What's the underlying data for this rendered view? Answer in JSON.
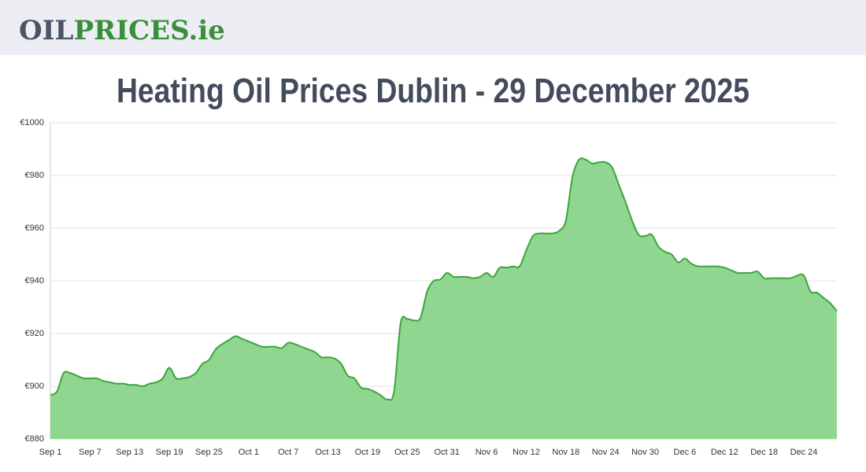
{
  "header": {
    "logo": [
      "OIL",
      "PRICES.ie"
    ]
  },
  "chart_data": {
    "type": "area",
    "title": "Heating Oil Prices Dublin - 29 December 2025",
    "categories": [
      "Sep 1",
      null,
      null,
      null,
      null,
      null,
      "Sep 7",
      null,
      null,
      null,
      null,
      null,
      "Sep 13",
      null,
      null,
      null,
      null,
      null,
      "Sep 19",
      null,
      null,
      null,
      null,
      null,
      "Sep 25",
      null,
      null,
      null,
      null,
      null,
      "Oct 1",
      null,
      null,
      null,
      null,
      null,
      "Oct 7",
      null,
      null,
      null,
      null,
      null,
      "Oct 13",
      null,
      null,
      null,
      null,
      null,
      "Oct 19",
      null,
      null,
      null,
      null,
      null,
      "Oct 25",
      null,
      null,
      null,
      null,
      null,
      "Oct 31",
      null,
      null,
      null,
      null,
      null,
      "Nov 6",
      null,
      null,
      null,
      null,
      null,
      "Nov 12",
      null,
      null,
      null,
      null,
      null,
      "Nov 18",
      null,
      null,
      null,
      null,
      null,
      "Nov 24",
      null,
      null,
      null,
      null,
      null,
      "Nov 30",
      null,
      null,
      null,
      null,
      null,
      "Dec 6",
      null,
      null,
      null,
      null,
      null,
      "Dec 12",
      null,
      null,
      null,
      null,
      null,
      "Dec 18",
      null,
      null,
      null,
      null,
      null,
      "Dec 24",
      null,
      null,
      null,
      null,
      null
    ],
    "values": [
      896.7,
      898,
      905,
      905,
      904,
      903,
      903,
      903,
      902,
      901.5,
      901,
      901,
      900.5,
      900.5,
      900,
      901,
      901.5,
      903,
      907,
      903,
      903,
      903.5,
      905,
      908.5,
      910,
      914,
      916,
      917.5,
      919,
      918,
      917,
      916,
      915,
      915,
      915,
      914.5,
      916.5,
      916,
      915,
      914,
      913,
      911,
      911,
      910.5,
      908.5,
      904,
      903,
      899.5,
      899,
      898,
      896.5,
      895,
      898,
      924,
      925.5,
      925,
      926,
      936,
      940,
      940.5,
      943,
      941.5,
      941.5,
      941.5,
      941,
      941.5,
      943,
      941.5,
      945,
      945,
      945.5,
      945.5,
      951.5,
      957,
      958,
      958,
      958,
      959,
      963,
      979.5,
      986,
      986,
      984.5,
      985,
      985,
      983,
      976.5,
      970,
      963,
      957.5,
      957,
      957.5,
      953,
      951,
      950,
      947,
      948.5,
      946.5,
      945.5,
      945.5,
      945.5,
      945.5,
      945,
      944,
      943,
      943,
      943,
      943.5,
      941,
      941,
      941,
      941,
      941,
      942,
      942,
      936,
      935.5,
      933.5,
      931.5,
      928.5
    ],
    "color": "#3aa63a",
    "fill": "#90d690",
    "ylim": [
      880,
      1000
    ],
    "yticks": [
      {
        "value": 880,
        "label": "€880"
      },
      {
        "value": 900,
        "label": "€900"
      },
      {
        "value": 920,
        "label": "€920"
      },
      {
        "value": 940,
        "label": "€940"
      },
      {
        "value": 960,
        "label": "€960"
      },
      {
        "value": 980,
        "label": "€980"
      },
      {
        "value": 1000,
        "label": "€1000"
      }
    ],
    "grid": true
  }
}
